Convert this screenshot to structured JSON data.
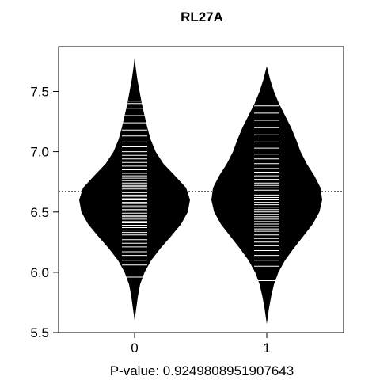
{
  "chart_data": {
    "type": "beanplot",
    "title": "RL27A",
    "xlabel": "P-value: 0.9249808951907643",
    "ylabel": "",
    "categories": [
      "0",
      "1"
    ],
    "ylim": [
      5.5,
      7.8
    ],
    "yticks": [
      5.5,
      6.0,
      6.5,
      7.0,
      7.5
    ],
    "ytick_labels": [
      "5.5",
      "6.0",
      "6.5",
      "7.0",
      "7.5"
    ],
    "overall_line": 6.67,
    "grid": false,
    "legend": "none",
    "colors": {
      "fill": "#000000",
      "individual_lines": "#ffffff",
      "background": "#ffffff"
    },
    "groups": [
      {
        "name": "0",
        "range": [
          5.6,
          7.78
        ],
        "mean": 6.67,
        "density": [
          [
            5.6,
            0.0
          ],
          [
            5.7,
            0.03
          ],
          [
            5.8,
            0.06
          ],
          [
            5.9,
            0.1
          ],
          [
            6.0,
            0.18
          ],
          [
            6.1,
            0.3
          ],
          [
            6.2,
            0.47
          ],
          [
            6.3,
            0.66
          ],
          [
            6.4,
            0.84
          ],
          [
            6.5,
            0.96
          ],
          [
            6.6,
            1.0
          ],
          [
            6.7,
            0.93
          ],
          [
            6.8,
            0.73
          ],
          [
            6.9,
            0.52
          ],
          [
            7.0,
            0.38
          ],
          [
            7.1,
            0.29
          ],
          [
            7.2,
            0.23
          ],
          [
            7.3,
            0.18
          ],
          [
            7.4,
            0.13
          ],
          [
            7.5,
            0.09
          ],
          [
            7.6,
            0.05
          ],
          [
            7.7,
            0.02
          ],
          [
            7.78,
            0.0
          ]
        ],
        "observations": [
          5.96,
          6.06,
          6.1,
          6.14,
          6.17,
          6.21,
          6.24,
          6.27,
          6.31,
          6.33,
          6.35,
          6.37,
          6.39,
          6.41,
          6.42,
          6.44,
          6.46,
          6.47,
          6.49,
          6.51,
          6.52,
          6.54,
          6.55,
          6.57,
          6.58,
          6.6,
          6.61,
          6.63,
          6.64,
          6.66,
          6.67,
          6.69,
          6.71,
          6.72,
          6.74,
          6.76,
          6.78,
          6.8,
          6.82,
          6.85,
          6.88,
          6.91,
          6.94,
          6.97,
          7.0,
          7.04,
          7.08,
          7.13,
          7.18,
          7.24,
          7.3,
          7.36,
          7.4,
          7.42
        ]
      },
      {
        "name": "1",
        "range": [
          5.57,
          7.71
        ],
        "mean": 6.66,
        "density": [
          [
            5.57,
            0.0
          ],
          [
            5.7,
            0.04
          ],
          [
            5.8,
            0.08
          ],
          [
            5.9,
            0.13
          ],
          [
            6.0,
            0.21
          ],
          [
            6.1,
            0.33
          ],
          [
            6.2,
            0.49
          ],
          [
            6.3,
            0.66
          ],
          [
            6.4,
            0.83
          ],
          [
            6.5,
            0.95
          ],
          [
            6.6,
            1.0
          ],
          [
            6.7,
            0.97
          ],
          [
            6.8,
            0.86
          ],
          [
            6.9,
            0.72
          ],
          [
            7.0,
            0.61
          ],
          [
            7.1,
            0.53
          ],
          [
            7.2,
            0.44
          ],
          [
            7.3,
            0.33
          ],
          [
            7.4,
            0.22
          ],
          [
            7.5,
            0.13
          ],
          [
            7.6,
            0.06
          ],
          [
            7.71,
            0.0
          ]
        ],
        "observations": [
          5.93,
          6.05,
          6.1,
          6.14,
          6.18,
          6.22,
          6.25,
          6.28,
          6.31,
          6.34,
          6.36,
          6.38,
          6.4,
          6.42,
          6.44,
          6.46,
          6.48,
          6.5,
          6.52,
          6.54,
          6.56,
          6.58,
          6.6,
          6.62,
          6.64,
          6.66,
          6.68,
          6.7,
          6.72,
          6.74,
          6.77,
          6.8,
          6.83,
          6.86,
          6.9,
          6.94,
          6.98,
          7.03,
          7.08,
          7.14,
          7.2,
          7.26,
          7.32,
          7.38
        ]
      }
    ]
  }
}
